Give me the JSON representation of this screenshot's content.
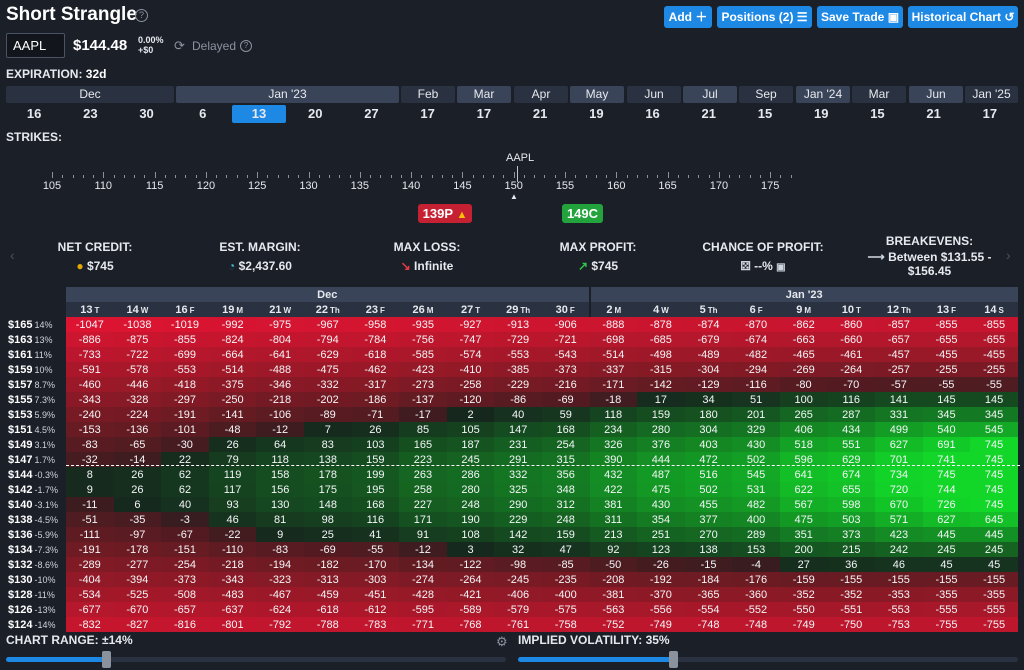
{
  "title": "Short Strangle",
  "header_buttons": {
    "add": "Add",
    "positions": "Positions (2)",
    "save": "Save Trade",
    "historical": "Historical Chart"
  },
  "ticker": {
    "symbol": "AAPL",
    "price": "$144.48",
    "change_pct": "0.00%",
    "change_abs": "+$0",
    "status": "Delayed"
  },
  "expiration": {
    "label": "EXPIRATION:",
    "value": "32d"
  },
  "months": [
    "Dec",
    "Jan '23",
    "Feb",
    "Mar",
    "Apr",
    "May",
    "Jun",
    "Jul",
    "Sep",
    "Jan '24",
    "Mar",
    "Jun",
    "Jan '25"
  ],
  "days": [
    "16",
    "23",
    "30",
    "6",
    "13",
    "20",
    "27",
    "17",
    "17",
    "21",
    "19",
    "16",
    "21",
    "15",
    "19",
    "15",
    "21",
    "17"
  ],
  "selected_day_index": 4,
  "strikes": {
    "label": "STRIKES:",
    "underlying": "AAPL",
    "ticks": [
      "105",
      "110",
      "115",
      "120",
      "125",
      "130",
      "135",
      "140",
      "145",
      "150",
      "155",
      "160",
      "165",
      "170",
      "175"
    ],
    "put_label": "139P",
    "call_label": "149C"
  },
  "stats": {
    "net_credit": {
      "label": "NET CREDIT:",
      "value": "$745"
    },
    "margin": {
      "label": "EST. MARGIN:",
      "value": "$2,437.60"
    },
    "max_loss": {
      "label": "MAX LOSS:",
      "value": "Infinite"
    },
    "max_profit": {
      "label": "MAX PROFIT:",
      "value": "$745"
    },
    "chance": {
      "label": "CHANCE OF PROFIT:",
      "value": "--%"
    },
    "breakevens": {
      "label": "BREAKEVENS:",
      "value": "Between $131.55 - $156.45"
    }
  },
  "grid": {
    "month_headers": [
      "Dec",
      "Jan '23"
    ],
    "day_headers": [
      [
        "13",
        "T"
      ],
      [
        "14",
        "W"
      ],
      [
        "16",
        "F"
      ],
      [
        "19",
        "M"
      ],
      [
        "21",
        "W"
      ],
      [
        "22",
        "Th"
      ],
      [
        "23",
        "F"
      ],
      [
        "26",
        "M"
      ],
      [
        "27",
        "T"
      ],
      [
        "29",
        "Th"
      ],
      [
        "30",
        "F"
      ],
      [
        "2",
        "M"
      ],
      [
        "4",
        "W"
      ],
      [
        "5",
        "Th"
      ],
      [
        "6",
        "F"
      ],
      [
        "9",
        "M"
      ],
      [
        "10",
        "T"
      ],
      [
        "12",
        "Th"
      ],
      [
        "13",
        "F"
      ],
      [
        "14",
        "S"
      ]
    ],
    "rows": [
      {
        "price": "$165",
        "pct": "14%",
        "v": [
          -1047,
          -1038,
          -1019,
          -992,
          -975,
          -967,
          -958,
          -935,
          -927,
          -913,
          -906,
          -888,
          -878,
          -874,
          -870,
          -862,
          -860,
          -857,
          -855,
          -855
        ]
      },
      {
        "price": "$163",
        "pct": "13%",
        "v": [
          -886,
          -875,
          -855,
          -824,
          -804,
          -794,
          -784,
          -756,
          -747,
          -729,
          -721,
          -698,
          -685,
          -679,
          -674,
          -663,
          -660,
          -657,
          -655,
          -655
        ]
      },
      {
        "price": "$161",
        "pct": "11%",
        "v": [
          -733,
          -722,
          -699,
          -664,
          -641,
          -629,
          -618,
          -585,
          -574,
          -553,
          -543,
          -514,
          -498,
          -489,
          -482,
          -465,
          -461,
          -457,
          -455,
          -455
        ]
      },
      {
        "price": "$159",
        "pct": "10%",
        "v": [
          -591,
          -578,
          -553,
          -514,
          -488,
          -475,
          -462,
          -423,
          -410,
          -385,
          -373,
          -337,
          -315,
          -304,
          -294,
          -269,
          -264,
          -257,
          -255,
          -255
        ]
      },
      {
        "price": "$157",
        "pct": "8.7%",
        "v": [
          -460,
          -446,
          -418,
          -375,
          -346,
          -332,
          -317,
          -273,
          -258,
          -229,
          -216,
          -171,
          -142,
          -129,
          -116,
          -80,
          -70,
          -57,
          -55,
          -55
        ]
      },
      {
        "price": "$155",
        "pct": "7.3%",
        "v": [
          -343,
          -328,
          -297,
          -250,
          -218,
          -202,
          -186,
          -137,
          -120,
          -86,
          -69,
          -18,
          17,
          34,
          51,
          100,
          116,
          141,
          145,
          145
        ]
      },
      {
        "price": "$153",
        "pct": "5.9%",
        "v": [
          -240,
          -224,
          -191,
          -141,
          -106,
          -89,
          -71,
          -17,
          2,
          40,
          59,
          118,
          159,
          180,
          201,
          265,
          287,
          331,
          345,
          345
        ]
      },
      {
        "price": "$151",
        "pct": "4.5%",
        "v": [
          -153,
          -136,
          -101,
          -48,
          -12,
          7,
          26,
          85,
          105,
          147,
          168,
          234,
          280,
          304,
          329,
          406,
          434,
          499,
          540,
          545
        ]
      },
      {
        "price": "$149",
        "pct": "3.1%",
        "v": [
          -83,
          -65,
          -30,
          26,
          64,
          83,
          103,
          165,
          187,
          231,
          254,
          326,
          376,
          403,
          430,
          518,
          551,
          627,
          691,
          745
        ]
      },
      {
        "price": "$147",
        "pct": "1.7%",
        "v": [
          -32,
          -14,
          22,
          79,
          118,
          138,
          159,
          223,
          245,
          291,
          315,
          390,
          444,
          472,
          502,
          596,
          629,
          701,
          741,
          745
        ]
      },
      {
        "price": "$144",
        "pct": "-0.3%",
        "v": [
          8,
          26,
          62,
          119,
          158,
          178,
          199,
          263,
          286,
          332,
          356,
          432,
          487,
          516,
          545,
          641,
          674,
          734,
          745,
          745
        ]
      },
      {
        "price": "$142",
        "pct": "-1.7%",
        "v": [
          9,
          26,
          62,
          117,
          156,
          175,
          195,
          258,
          280,
          325,
          348,
          422,
          475,
          502,
          531,
          622,
          655,
          720,
          744,
          745
        ]
      },
      {
        "price": "$140",
        "pct": "-3.1%",
        "v": [
          -11,
          6,
          40,
          93,
          130,
          148,
          168,
          227,
          248,
          290,
          312,
          381,
          430,
          455,
          482,
          567,
          598,
          670,
          726,
          745
        ]
      },
      {
        "price": "$138",
        "pct": "-4.5%",
        "v": [
          -51,
          -35,
          -3,
          46,
          81,
          98,
          116,
          171,
          190,
          229,
          248,
          311,
          354,
          377,
          400,
          475,
          503,
          571,
          627,
          645
        ]
      },
      {
        "price": "$136",
        "pct": "-5.9%",
        "v": [
          -111,
          -97,
          -67,
          -22,
          9,
          25,
          41,
          91,
          108,
          142,
          159,
          213,
          251,
          270,
          289,
          351,
          373,
          423,
          445,
          445
        ]
      },
      {
        "price": "$134",
        "pct": "-7.3%",
        "v": [
          -191,
          -178,
          -151,
          -110,
          -83,
          -69,
          -55,
          -12,
          3,
          32,
          47,
          92,
          123,
          138,
          153,
          200,
          215,
          242,
          245,
          245
        ]
      },
      {
        "price": "$132",
        "pct": "-8.6%",
        "v": [
          -289,
          -277,
          -254,
          -218,
          -194,
          -182,
          -170,
          -134,
          -122,
          -98,
          -85,
          -50,
          -26,
          -15,
          -4,
          27,
          36,
          46,
          45,
          45
        ]
      },
      {
        "price": "$130",
        "pct": "-10%",
        "v": [
          -404,
          -394,
          -373,
          -343,
          -323,
          -313,
          -303,
          -274,
          -264,
          -245,
          -235,
          -208,
          -192,
          -184,
          -176,
          -159,
          -155,
          -155,
          -155,
          -155
        ]
      },
      {
        "price": "$128",
        "pct": "-11%",
        "v": [
          -534,
          -525,
          -508,
          -483,
          -467,
          -459,
          -451,
          -428,
          -421,
          -406,
          -400,
          -381,
          -370,
          -365,
          -360,
          -352,
          -352,
          -353,
          -355,
          -355
        ]
      },
      {
        "price": "$126",
        "pct": "-13%",
        "v": [
          -677,
          -670,
          -657,
          -637,
          -624,
          -618,
          -612,
          -595,
          -589,
          -579,
          -575,
          -563,
          -556,
          -554,
          -552,
          -550,
          -551,
          -553,
          -555,
          -555
        ]
      },
      {
        "price": "$124",
        "pct": "-14%",
        "v": [
          -832,
          -827,
          -816,
          -801,
          -792,
          -788,
          -783,
          -771,
          -768,
          -761,
          -758,
          -752,
          -749,
          -748,
          -748,
          -749,
          -750,
          -753,
          -755,
          -755
        ]
      }
    ]
  },
  "chart_range": {
    "label": "CHART RANGE:",
    "value": "±14%",
    "fraction": 0.2
  },
  "implied_volatility": {
    "label": "IMPLIED VOLATILITY:",
    "value": "35%",
    "fraction": 0.31
  }
}
